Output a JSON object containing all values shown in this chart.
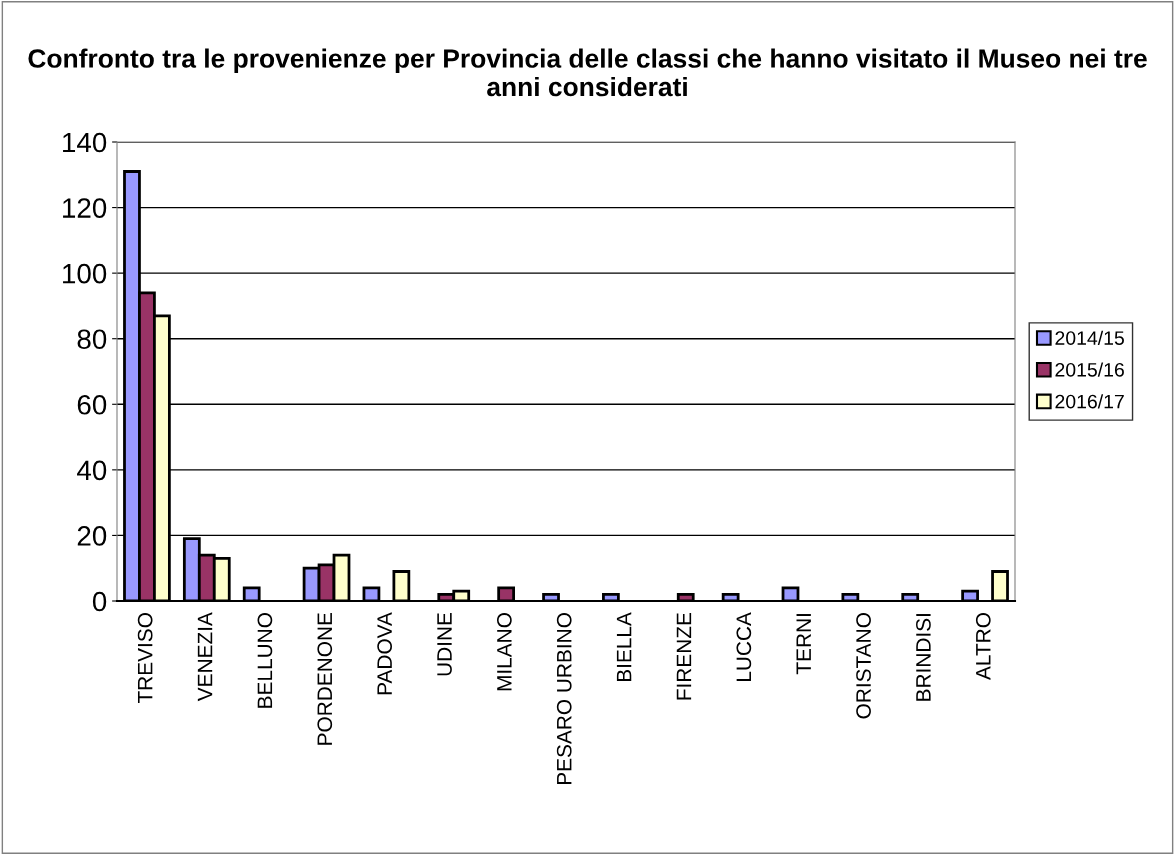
{
  "chart_data": {
    "type": "bar",
    "title": "Confronto tra le provenienze per Provincia delle classi che hanno visitato il Museo nei tre anni considerati",
    "categories": [
      "TREVISO",
      "VENEZIA",
      "BELLUNO",
      "PORDENONE",
      "PADOVA",
      "UDINE",
      "MILANO",
      "PESARO URBINO",
      "BIELLA",
      "FIRENZE",
      "LUCCA",
      "TERNI",
      "ORISTANO",
      "BRINDISI",
      "ALTRO"
    ],
    "series": [
      {
        "name": "2014/15",
        "color": "#9999ff",
        "values": [
          131,
          19,
          4,
          10,
          4,
          null,
          null,
          2,
          2,
          null,
          2,
          4,
          2,
          2,
          3
        ]
      },
      {
        "name": "2015/16",
        "color": "#993366",
        "values": [
          94,
          14,
          null,
          11,
          null,
          2,
          4,
          null,
          null,
          2,
          null,
          null,
          null,
          null,
          null
        ]
      },
      {
        "name": "2016/17",
        "color": "#ffffcc",
        "values": [
          87,
          13,
          null,
          14,
          9,
          3,
          null,
          null,
          null,
          null,
          null,
          null,
          null,
          null,
          9
        ]
      }
    ],
    "ylim": [
      0,
      140
    ],
    "yticks": [
      0,
      20,
      40,
      60,
      80,
      100,
      120,
      140
    ],
    "grid": "y",
    "legend": "right"
  }
}
